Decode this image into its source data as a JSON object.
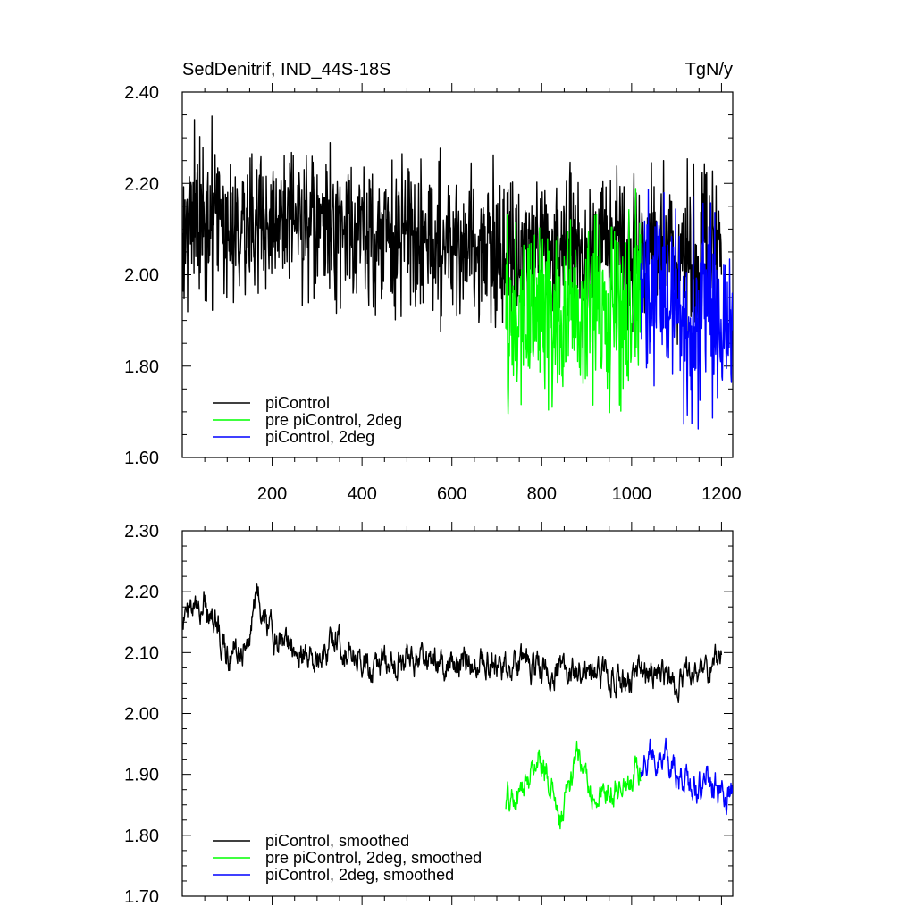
{
  "chart_data": [
    {
      "type": "line",
      "title": "SedDenitrif, IND_44S-18S",
      "units": "TgN/y",
      "xlim": [
        0,
        1225
      ],
      "ylim": [
        1.6,
        2.4
      ],
      "x_ticks": [
        200,
        400,
        600,
        800,
        1000,
        1200
      ],
      "y_ticks": [
        1.6,
        1.8,
        2.0,
        2.2,
        2.4
      ],
      "y_tick_labels": [
        "1.60",
        "1.80",
        "2.00",
        "2.20",
        "2.40"
      ],
      "legend": {
        "placement": "bottom-left"
      },
      "series": [
        {
          "name": "piControl",
          "color": "#000000",
          "x_range": [
            1,
            1200
          ],
          "mean": 2.09,
          "spread": 0.18,
          "anchors": [
            [
              1,
              2.12
            ],
            [
              100,
              2.12
            ],
            [
              200,
              2.11
            ],
            [
              300,
              2.1
            ],
            [
              400,
              2.09
            ],
            [
              500,
              2.08
            ],
            [
              600,
              2.07
            ],
            [
              700,
              2.06
            ],
            [
              800,
              2.05
            ],
            [
              900,
              2.05
            ],
            [
              1000,
              2.05
            ],
            [
              1100,
              2.05
            ],
            [
              1200,
              2.05
            ]
          ]
        },
        {
          "name": "pre piControl, 2deg",
          "color": "#00ff00",
          "x_range": [
            720,
            1020
          ],
          "mean": 1.93,
          "spread": 0.22,
          "anchors": [
            [
              720,
              1.88
            ],
            [
              800,
              1.93
            ],
            [
              850,
              1.9
            ],
            [
              900,
              1.92
            ],
            [
              950,
              1.93
            ],
            [
              1020,
              1.93
            ]
          ]
        },
        {
          "name": "piControl, 2deg",
          "color": "#0000ff",
          "x_range": [
            1020,
            1225
          ],
          "mean": 1.93,
          "spread": 0.22,
          "anchors": [
            [
              1020,
              1.95
            ],
            [
              1070,
              1.95
            ],
            [
              1120,
              1.9
            ],
            [
              1170,
              1.93
            ],
            [
              1225,
              1.88
            ]
          ]
        }
      ]
    },
    {
      "type": "line",
      "xlim": [
        0,
        1225
      ],
      "ylim": [
        1.7,
        2.3
      ],
      "x_ticks": [
        200,
        400,
        600,
        800,
        1000,
        1200
      ],
      "y_ticks": [
        1.7,
        1.8,
        1.9,
        2.0,
        2.1,
        2.2,
        2.3
      ],
      "y_tick_labels": [
        "1.70",
        "1.80",
        "1.90",
        "2.00",
        "2.10",
        "2.20",
        "2.30"
      ],
      "legend": {
        "placement": "bottom-left"
      },
      "series": [
        {
          "name": "piControl, smoothed",
          "color": "#000000",
          "x_range": [
            1,
            1200
          ],
          "mean": 2.09,
          "spread": 0.05,
          "anchors": [
            [
              1,
              2.16
            ],
            [
              30,
              2.16
            ],
            [
              50,
              2.19
            ],
            [
              80,
              2.14
            ],
            [
              100,
              2.1
            ],
            [
              150,
              2.12
            ],
            [
              165,
              2.2
            ],
            [
              200,
              2.13
            ],
            [
              250,
              2.11
            ],
            [
              300,
              2.09
            ],
            [
              350,
              2.12
            ],
            [
              400,
              2.09
            ],
            [
              450,
              2.08
            ],
            [
              500,
              2.09
            ],
            [
              600,
              2.08
            ],
            [
              700,
              2.08
            ],
            [
              800,
              2.08
            ],
            [
              900,
              2.07
            ],
            [
              1000,
              2.06
            ],
            [
              1100,
              2.06
            ],
            [
              1200,
              2.08
            ]
          ]
        },
        {
          "name": "pre piControl, 2deg, smoothed",
          "color": "#00ff00",
          "x_range": [
            720,
            1020
          ],
          "mean": 1.88,
          "spread": 0.05,
          "anchors": [
            [
              720,
              1.86
            ],
            [
              750,
              1.86
            ],
            [
              790,
              1.93
            ],
            [
              810,
              1.91
            ],
            [
              840,
              1.82
            ],
            [
              880,
              1.93
            ],
            [
              920,
              1.86
            ],
            [
              960,
              1.88
            ],
            [
              1000,
              1.9
            ],
            [
              1020,
              1.9
            ]
          ]
        },
        {
          "name": "piControl, 2deg, smoothed",
          "color": "#0000ff",
          "x_range": [
            1020,
            1225
          ],
          "mean": 1.9,
          "spread": 0.05,
          "anchors": [
            [
              1020,
              1.92
            ],
            [
              1060,
              1.94
            ],
            [
              1100,
              1.9
            ],
            [
              1140,
              1.87
            ],
            [
              1170,
              1.9
            ],
            [
              1200,
              1.86
            ],
            [
              1225,
              1.87
            ]
          ]
        }
      ]
    }
  ]
}
